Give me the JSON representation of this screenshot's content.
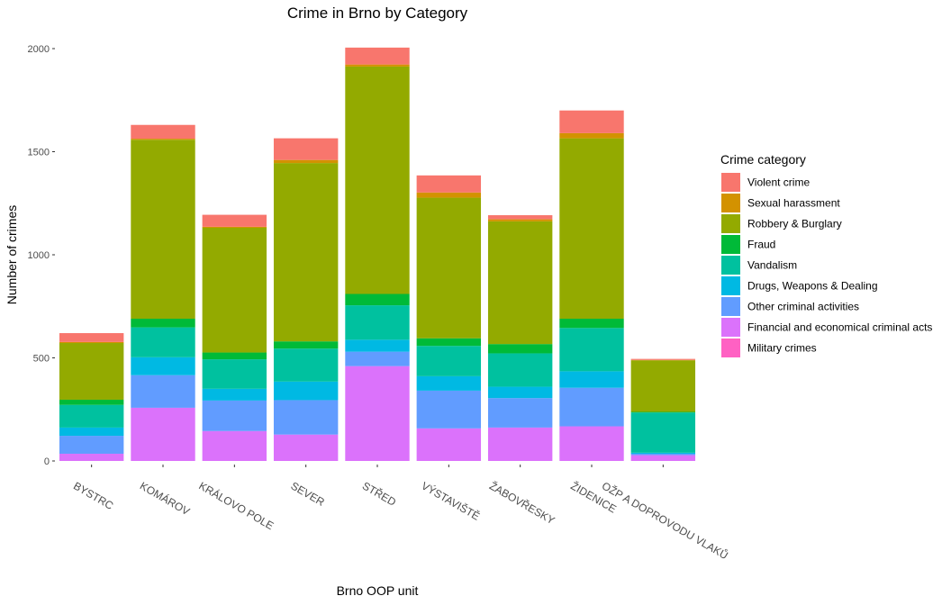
{
  "chart_data": {
    "type": "bar",
    "stacked": true,
    "title": "Crime in Brno by Category",
    "xlabel": "Brno OOP unit",
    "ylabel": "Number of crimes",
    "ylim": [
      0,
      2000
    ],
    "yticks": [
      0,
      500,
      1000,
      1500,
      2000
    ],
    "grid": false,
    "legend_position": "right",
    "legend_title": "Crime category",
    "categories": [
      "BYSTRC",
      "KOMÁROV",
      "KRÁLOVO POLE",
      "SEVER",
      "STŘED",
      "VÝSTAVIŠTĚ",
      "ŽABOVŘESKY",
      "ŽIDENICE",
      "OŽP A DOPROVODU VLAKŮ"
    ],
    "series": [
      {
        "name": "Military crimes",
        "color": "#FF61C3",
        "values": [
          0,
          0,
          0,
          0,
          0,
          0,
          0,
          0,
          0
        ]
      },
      {
        "name": "Financial and economical criminal acts",
        "color": "#DB72FB",
        "values": [
          35,
          258,
          145,
          128,
          460,
          158,
          162,
          168,
          28
        ]
      },
      {
        "name": "Other criminal activities",
        "color": "#619CFF",
        "values": [
          87,
          158,
          148,
          167,
          70,
          183,
          143,
          187,
          7
        ]
      },
      {
        "name": "Drugs, Weapons & Dealing",
        "color": "#00B9E3",
        "values": [
          40,
          87,
          57,
          90,
          58,
          70,
          55,
          80,
          5
        ]
      },
      {
        "name": "Vandalism",
        "color": "#00C19F",
        "values": [
          110,
          145,
          143,
          160,
          167,
          147,
          162,
          210,
          195
        ]
      },
      {
        "name": "Fraud",
        "color": "#00BA38",
        "values": [
          25,
          42,
          33,
          35,
          55,
          37,
          45,
          45,
          3
        ]
      },
      {
        "name": "Robbery & Burglary",
        "color": "#93AA00",
        "values": [
          275,
          868,
          605,
          865,
          1103,
          682,
          595,
          875,
          250
        ]
      },
      {
        "name": "Sexual harassment",
        "color": "#D39200",
        "values": [
          5,
          5,
          5,
          15,
          10,
          25,
          10,
          25,
          2
        ]
      },
      {
        "name": "Violent crime",
        "color": "#F8766D",
        "values": [
          43,
          67,
          58,
          105,
          82,
          83,
          20,
          110,
          5
        ]
      }
    ]
  }
}
